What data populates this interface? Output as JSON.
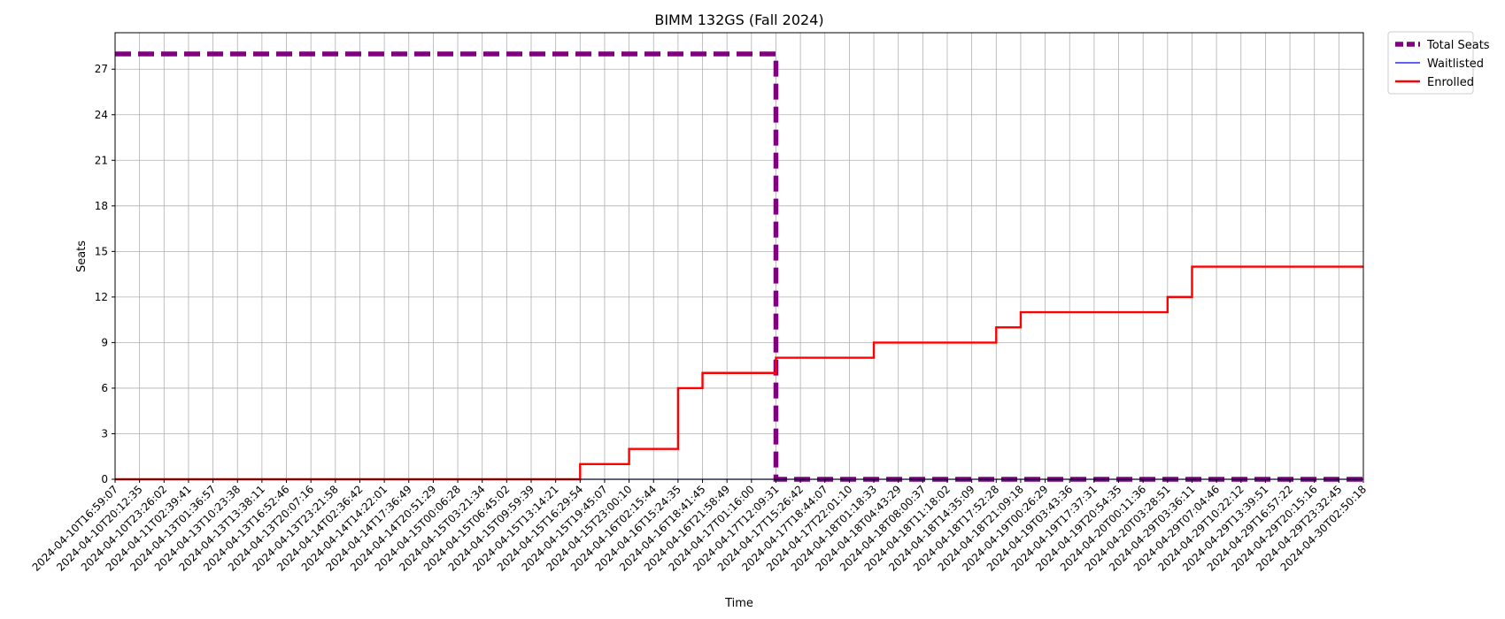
{
  "chart_data": {
    "type": "line",
    "title": "BIMM 132GS (Fall 2024)",
    "xlabel": "Time",
    "ylabel": "Seats",
    "ylim": [
      0,
      29.4
    ],
    "yticks": [
      0,
      3,
      6,
      9,
      12,
      15,
      18,
      21,
      24,
      27
    ],
    "grid": true,
    "legend_position": "outside-top-right",
    "x": [
      "2024-04-10T16:59:07",
      "2024-04-10T20:12:35",
      "2024-04-10T23:26:02",
      "2024-04-11T02:39:41",
      "2024-04-13T01:36:57",
      "2024-04-13T10:23:38",
      "2024-04-13T13:38:11",
      "2024-04-13T16:52:46",
      "2024-04-13T20:07:16",
      "2024-04-13T23:21:58",
      "2024-04-14T02:36:42",
      "2024-04-14T14:22:01",
      "2024-04-14T17:36:49",
      "2024-04-14T20:51:29",
      "2024-04-15T00:06:28",
      "2024-04-15T03:21:34",
      "2024-04-15T06:45:02",
      "2024-04-15T09:59:39",
      "2024-04-15T13:14:21",
      "2024-04-15T16:29:54",
      "2024-04-15T19:45:07",
      "2024-04-15T23:00:10",
      "2024-04-16T02:15:44",
      "2024-04-16T15:24:35",
      "2024-04-16T18:41:45",
      "2024-04-16T21:58:49",
      "2024-04-17T01:16:00",
      "2024-04-17T12:09:31",
      "2024-04-17T15:26:42",
      "2024-04-17T18:44:07",
      "2024-04-17T22:01:10",
      "2024-04-18T01:18:33",
      "2024-04-18T04:43:29",
      "2024-04-18T08:00:37",
      "2024-04-18T11:18:02",
      "2024-04-18T14:35:09",
      "2024-04-18T17:52:28",
      "2024-04-18T21:09:18",
      "2024-04-19T00:26:29",
      "2024-04-19T03:43:36",
      "2024-04-19T17:37:31",
      "2024-04-19T20:54:35",
      "2024-04-20T00:11:36",
      "2024-04-20T03:28:51",
      "2024-04-29T03:36:11",
      "2024-04-29T07:04:46",
      "2024-04-29T10:22:12",
      "2024-04-29T13:39:51",
      "2024-04-29T16:57:22",
      "2024-04-29T20:15:16",
      "2024-04-29T23:32:45",
      "2024-04-30T02:50:18"
    ],
    "series": [
      {
        "name": "Total Seats",
        "color": "#800080",
        "style": "dashed",
        "step": "post",
        "values": [
          28,
          28,
          28,
          28,
          28,
          28,
          28,
          28,
          28,
          28,
          28,
          28,
          28,
          28,
          28,
          28,
          28,
          28,
          28,
          28,
          28,
          28,
          28,
          28,
          28,
          28,
          28,
          0,
          0,
          0,
          0,
          0,
          0,
          0,
          0,
          0,
          0,
          0,
          0,
          0,
          0,
          0,
          0,
          0,
          0,
          0,
          0,
          0,
          0,
          0,
          0,
          0
        ]
      },
      {
        "name": "Waitlisted",
        "color": "#0000ff",
        "style": "solid",
        "step": "post",
        "values": [
          0,
          0,
          0,
          0,
          0,
          0,
          0,
          0,
          0,
          0,
          0,
          0,
          0,
          0,
          0,
          0,
          0,
          0,
          0,
          0,
          0,
          0,
          0,
          0,
          0,
          0,
          0,
          0,
          0,
          0,
          0,
          0,
          0,
          0,
          0,
          0,
          0,
          0,
          0,
          0,
          0,
          0,
          0,
          0,
          0,
          0,
          0,
          0,
          0,
          0,
          0,
          0
        ]
      },
      {
        "name": "Enrolled",
        "color": "#ff0000",
        "style": "solid",
        "step": "post",
        "values": [
          0,
          0,
          0,
          0,
          0,
          0,
          0,
          0,
          0,
          0,
          0,
          0,
          0,
          0,
          0,
          0,
          0,
          0,
          0,
          1,
          1,
          2,
          2,
          6,
          7,
          7,
          7,
          8,
          8,
          8,
          8,
          9,
          9,
          9,
          9,
          9,
          10,
          11,
          11,
          11,
          11,
          11,
          11,
          12,
          14,
          14,
          14,
          14,
          14,
          14,
          14,
          14
        ]
      }
    ]
  }
}
